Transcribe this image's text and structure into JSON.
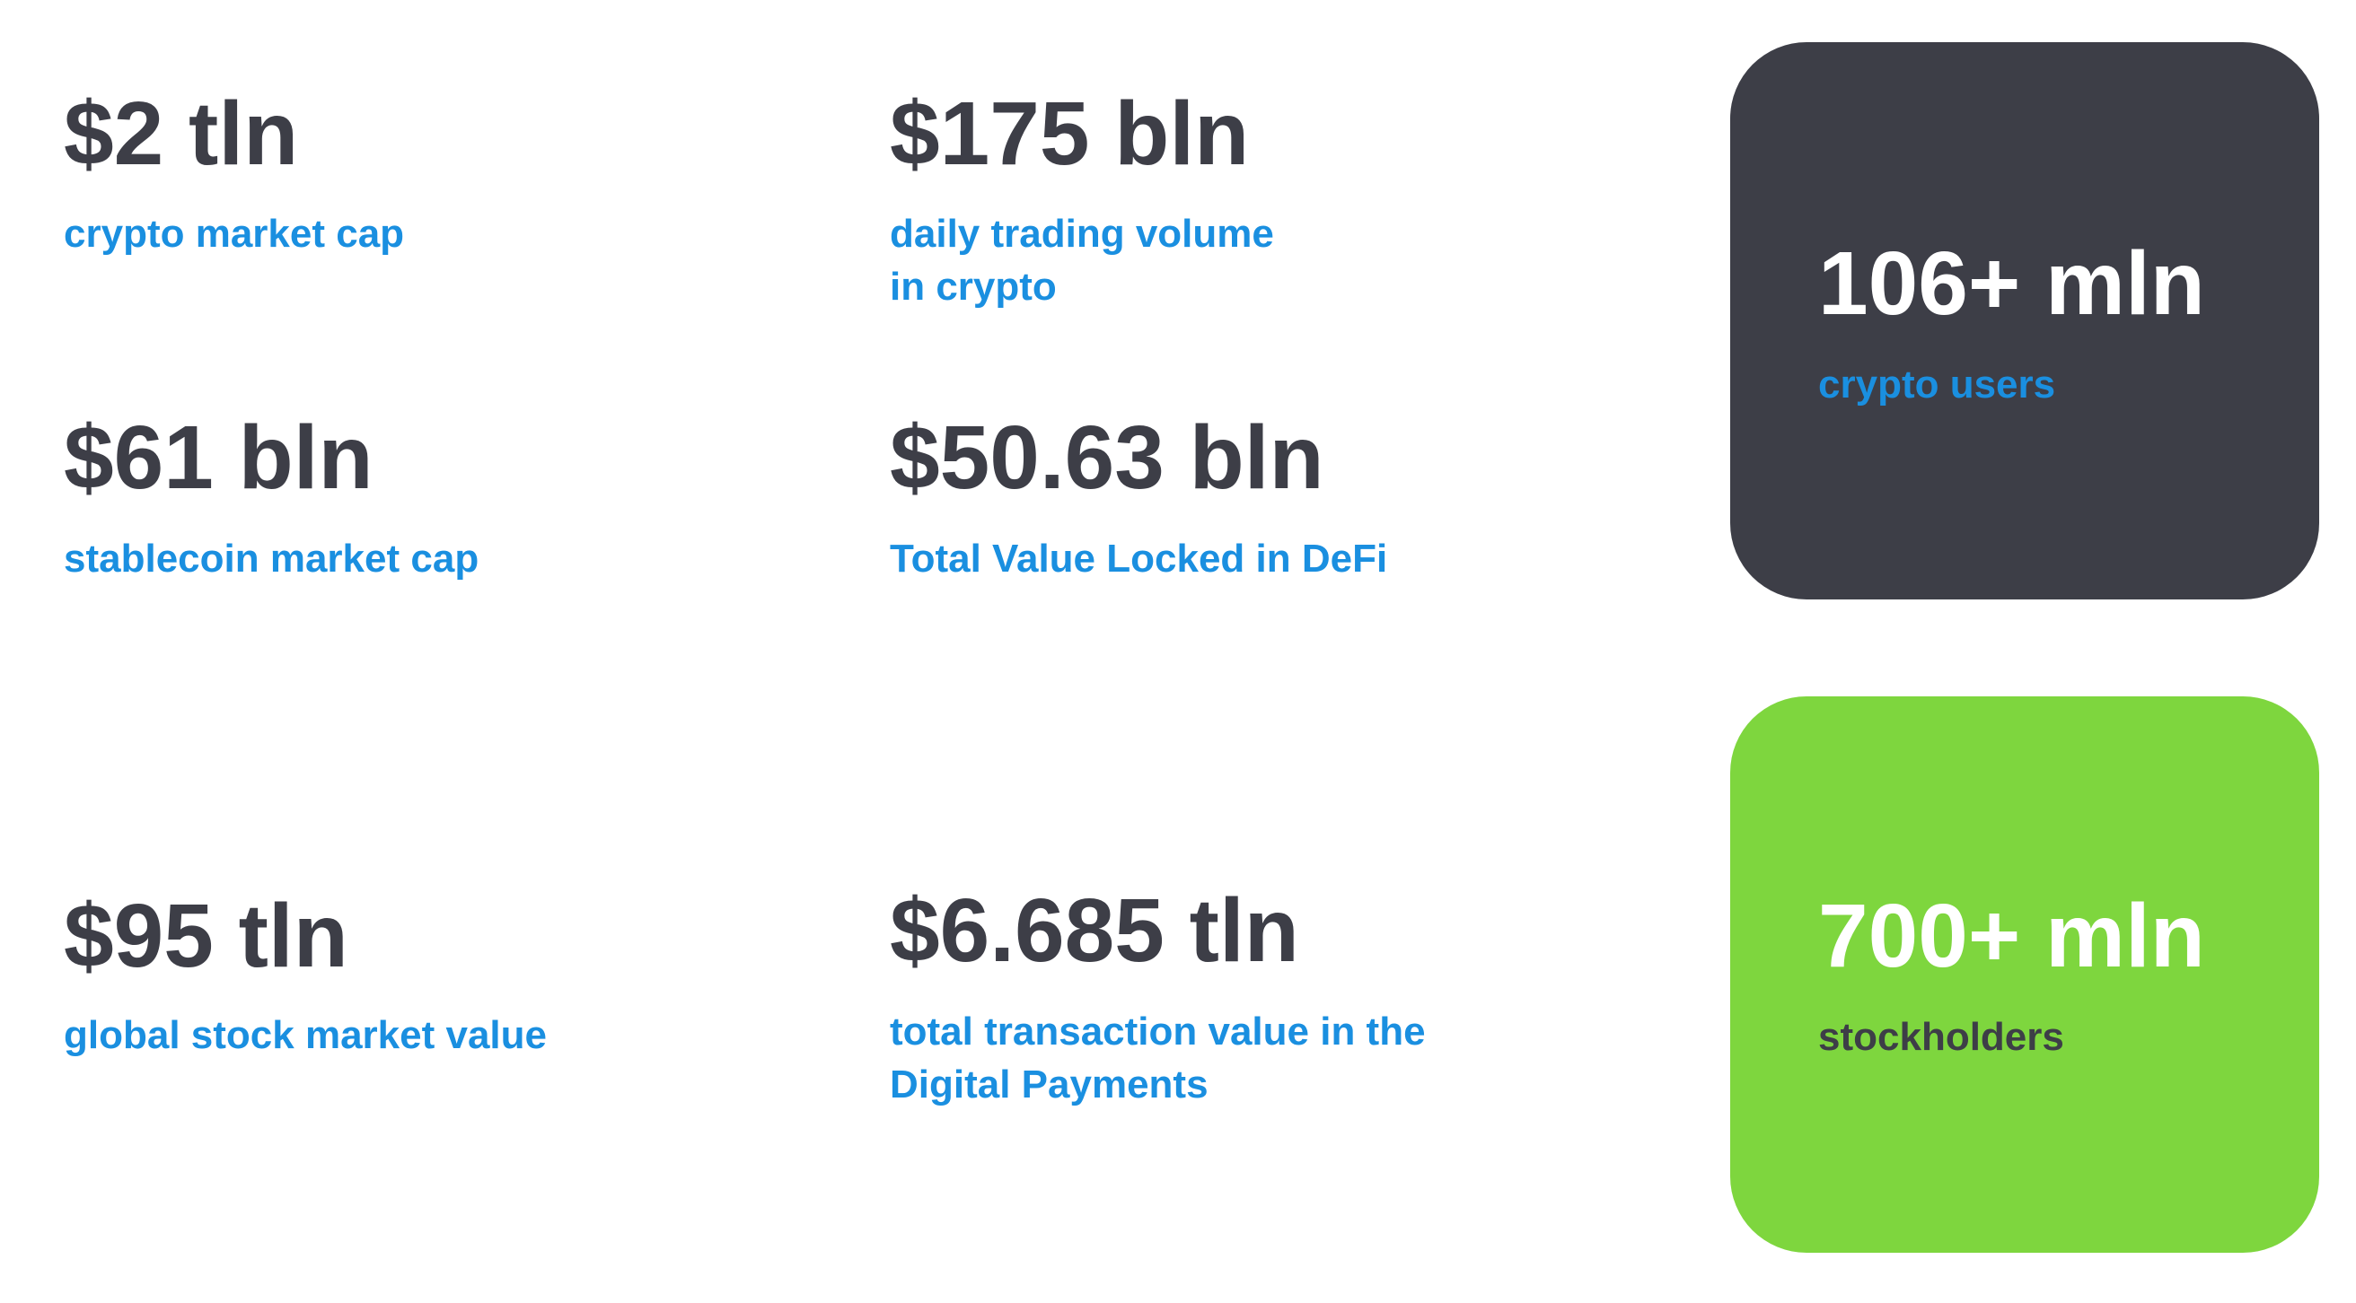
{
  "stats": [
    {
      "value": "$2 tln",
      "label": [
        "crypto market cap"
      ]
    },
    {
      "value": "$175 bln",
      "label": [
        "daily trading volume",
        "in crypto"
      ]
    },
    {
      "value": "$61 bln",
      "label": [
        "stablecoin market cap"
      ]
    },
    {
      "value": "$50.63 bln",
      "label": [
        "Total Value Locked in DeFi"
      ]
    },
    {
      "value": "$95 tln",
      "label": [
        "global stock market value"
      ]
    },
    {
      "value": "$6.685 tln",
      "label": [
        "total transaction value in the",
        "Digital Payments"
      ]
    }
  ],
  "cards": [
    {
      "value": "106+ mln",
      "label": "crypto users"
    },
    {
      "value": "700+ mln",
      "label": "stockholders"
    }
  ]
}
